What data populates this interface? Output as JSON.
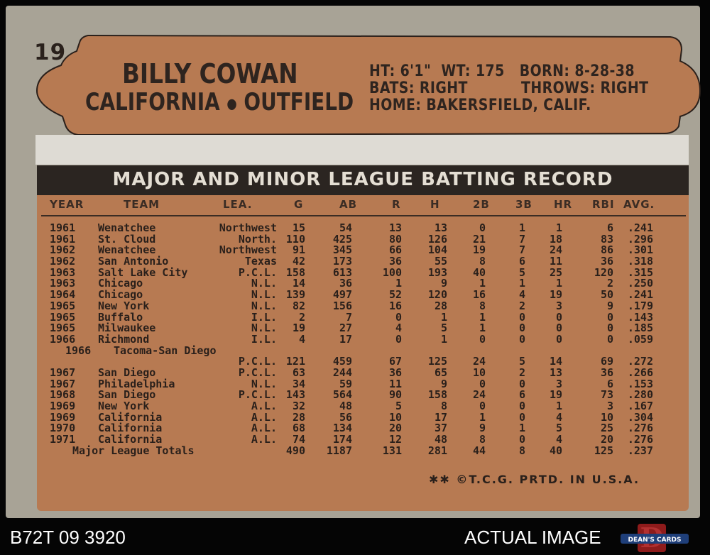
{
  "card": {
    "number": "19",
    "player_name": "BILLY COWAN",
    "team": "CALIFORNIA",
    "separator": "●",
    "position": "OUTFIELD",
    "bio_line1_ht": "HT: 6'1\"",
    "bio_line1_wt": "WT: 175",
    "bio_line1_born": "BORN: 8-28-38",
    "bio_line2_bats": "BATS: RIGHT",
    "bio_line2_throws": "THROWS: RIGHT",
    "bio_line3_home": "HOME: BAKERSFIELD, CALIF.",
    "record_title": "MAJOR AND MINOR LEAGUE BATTING RECORD",
    "footer": "✱✱ ©T.C.G. PRTD. IN U.S.A.",
    "colors": {
      "card_background": "#a8a396",
      "banner_orange": "#b77a52",
      "title_bar": "#2b2521",
      "ink": "#2a201b"
    }
  },
  "table": {
    "headers": [
      "YEAR",
      "TEAM",
      "LEA.",
      "G",
      "AB",
      "R",
      "H",
      "2B",
      "3B",
      "HR",
      "RBI",
      "AVG."
    ],
    "rows": [
      {
        "year": "1961",
        "team": "Wenatchee",
        "lea": "Northwest",
        "g": "15",
        "ab": "54",
        "r": "13",
        "h": "13",
        "d": "0",
        "t": "1",
        "hr": "1",
        "rbi": "6",
        "avg": ".241"
      },
      {
        "year": "1961",
        "team": "St. Cloud",
        "lea": "North.",
        "g": "110",
        "ab": "425",
        "r": "80",
        "h": "126",
        "d": "21",
        "t": "7",
        "hr": "18",
        "rbi": "83",
        "avg": ".296"
      },
      {
        "year": "1962",
        "team": "Wenatchee",
        "lea": "Northwest",
        "g": "91",
        "ab": "345",
        "r": "66",
        "h": "104",
        "d": "19",
        "t": "7",
        "hr": "24",
        "rbi": "86",
        "avg": ".301"
      },
      {
        "year": "1962",
        "team": "San Antonio",
        "lea": "Texas",
        "g": "42",
        "ab": "173",
        "r": "36",
        "h": "55",
        "d": "8",
        "t": "6",
        "hr": "11",
        "rbi": "36",
        "avg": ".318"
      },
      {
        "year": "1963",
        "team": "Salt Lake City",
        "lea": "P.C.L.",
        "g": "158",
        "ab": "613",
        "r": "100",
        "h": "193",
        "d": "40",
        "t": "5",
        "hr": "25",
        "rbi": "120",
        "avg": ".315"
      },
      {
        "year": "1963",
        "team": "Chicago",
        "lea": "N.L.",
        "g": "14",
        "ab": "36",
        "r": "1",
        "h": "9",
        "d": "1",
        "t": "1",
        "hr": "1",
        "rbi": "2",
        "avg": ".250"
      },
      {
        "year": "1964",
        "team": "Chicago",
        "lea": "N.L.",
        "g": "139",
        "ab": "497",
        "r": "52",
        "h": "120",
        "d": "16",
        "t": "4",
        "hr": "19",
        "rbi": "50",
        "avg": ".241"
      },
      {
        "year": "1965",
        "team": "New York",
        "lea": "N.L.",
        "g": "82",
        "ab": "156",
        "r": "16",
        "h": "28",
        "d": "8",
        "t": "2",
        "hr": "3",
        "rbi": "9",
        "avg": ".179"
      },
      {
        "year": "1965",
        "team": "Buffalo",
        "lea": "I.L.",
        "g": "2",
        "ab": "7",
        "r": "0",
        "h": "1",
        "d": "1",
        "t": "0",
        "hr": "0",
        "rbi": "0",
        "avg": ".143"
      },
      {
        "year": "1965",
        "team": "Milwaukee",
        "lea": "N.L.",
        "g": "19",
        "ab": "27",
        "r": "4",
        "h": "5",
        "d": "1",
        "t": "0",
        "hr": "0",
        "rbi": "0",
        "avg": ".185"
      },
      {
        "year": "1966",
        "team": "Richmond",
        "lea": "I.L.",
        "g": "4",
        "ab": "17",
        "r": "0",
        "h": "1",
        "d": "0",
        "t": "0",
        "hr": "0",
        "rbi": "0",
        "avg": ".059"
      },
      {
        "year": "1966",
        "team": "Tacoma-San Diego",
        "lea": "",
        "g": "",
        "ab": "",
        "r": "",
        "h": "",
        "d": "",
        "t": "",
        "hr": "",
        "rbi": "",
        "avg": ""
      },
      {
        "year": "",
        "team": "",
        "lea": "P.C.L.",
        "g": "121",
        "ab": "459",
        "r": "67",
        "h": "125",
        "d": "24",
        "t": "5",
        "hr": "14",
        "rbi": "69",
        "avg": ".272"
      },
      {
        "year": "1967",
        "team": "San Diego",
        "lea": "P.C.L.",
        "g": "63",
        "ab": "244",
        "r": "36",
        "h": "65",
        "d": "10",
        "t": "2",
        "hr": "13",
        "rbi": "36",
        "avg": ".266"
      },
      {
        "year": "1967",
        "team": "Philadelphia",
        "lea": "N.L.",
        "g": "34",
        "ab": "59",
        "r": "11",
        "h": "9",
        "d": "0",
        "t": "0",
        "hr": "3",
        "rbi": "6",
        "avg": ".153"
      },
      {
        "year": "1968",
        "team": "San Diego",
        "lea": "P.C.L.",
        "g": "143",
        "ab": "564",
        "r": "90",
        "h": "158",
        "d": "24",
        "t": "6",
        "hr": "19",
        "rbi": "73",
        "avg": ".280"
      },
      {
        "year": "1969",
        "team": "New York",
        "lea": "A.L.",
        "g": "32",
        "ab": "48",
        "r": "5",
        "h": "8",
        "d": "0",
        "t": "0",
        "hr": "1",
        "rbi": "3",
        "avg": ".167"
      },
      {
        "year": "1969",
        "team": "California",
        "lea": "A.L.",
        "g": "28",
        "ab": "56",
        "r": "10",
        "h": "17",
        "d": "1",
        "t": "0",
        "hr": "4",
        "rbi": "10",
        "avg": ".304"
      },
      {
        "year": "1970",
        "team": "California",
        "lea": "A.L.",
        "g": "68",
        "ab": "134",
        "r": "20",
        "h": "37",
        "d": "9",
        "t": "1",
        "hr": "5",
        "rbi": "25",
        "avg": ".276"
      },
      {
        "year": "1971",
        "team": "California",
        "lea": "A.L.",
        "g": "74",
        "ab": "174",
        "r": "12",
        "h": "48",
        "d": "8",
        "t": "0",
        "hr": "4",
        "rbi": "20",
        "avg": ".276"
      },
      {
        "year": "",
        "team": "Major League Totals",
        "lea": "",
        "g": "490",
        "ab": "1187",
        "r": "131",
        "h": "281",
        "d": "44",
        "t": "8",
        "hr": "40",
        "rbi": "125",
        "avg": ".237"
      }
    ]
  },
  "scan": {
    "id_label": "B72T 09 3920",
    "watermark": "ACTUAL IMAGE",
    "logo_text": "DEAN'S CARDS",
    "logo_letter": "D"
  }
}
